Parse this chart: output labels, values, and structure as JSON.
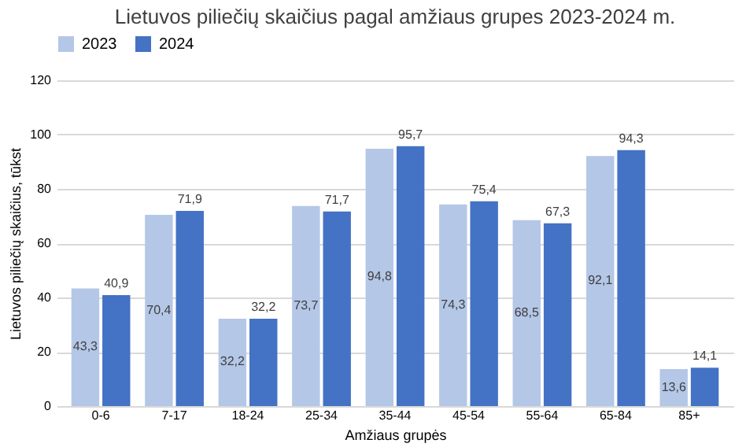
{
  "chart_data": {
    "type": "bar",
    "title": "Lietuvos piliečių skaičius pagal amžiaus grupes 2023-2024 m.",
    "xlabel": "Amžiaus grupės",
    "ylabel": "Lietuvos piliečių skaičius, tūkst",
    "categories": [
      "0-6",
      "7-17",
      "18-24",
      "25-34",
      "35-44",
      "45-54",
      "55-64",
      "65-84",
      "85+"
    ],
    "series": [
      {
        "name": "2023",
        "color": "#b4c7e7",
        "values": [
          43.3,
          70.4,
          32.2,
          73.7,
          94.8,
          74.3,
          68.5,
          92.1,
          13.6
        ],
        "value_labels": [
          "43,3",
          "70,4",
          "32,2",
          "73,7",
          "94,8",
          "74,3",
          "68,5",
          "92,1",
          "13,6"
        ]
      },
      {
        "name": "2024",
        "color": "#4472c4",
        "values": [
          40.9,
          71.9,
          32.2,
          71.7,
          95.7,
          75.4,
          67.3,
          94.3,
          14.1
        ],
        "value_labels": [
          "40,9",
          "71,9",
          "32,2",
          "71,7",
          "95,7",
          "75,4",
          "67,3",
          "94,3",
          "14,1"
        ]
      }
    ],
    "ylim": [
      0,
      120
    ],
    "yticks": [
      0,
      20,
      40,
      60,
      80,
      100,
      120
    ],
    "grid": "y",
    "legend": "top"
  }
}
